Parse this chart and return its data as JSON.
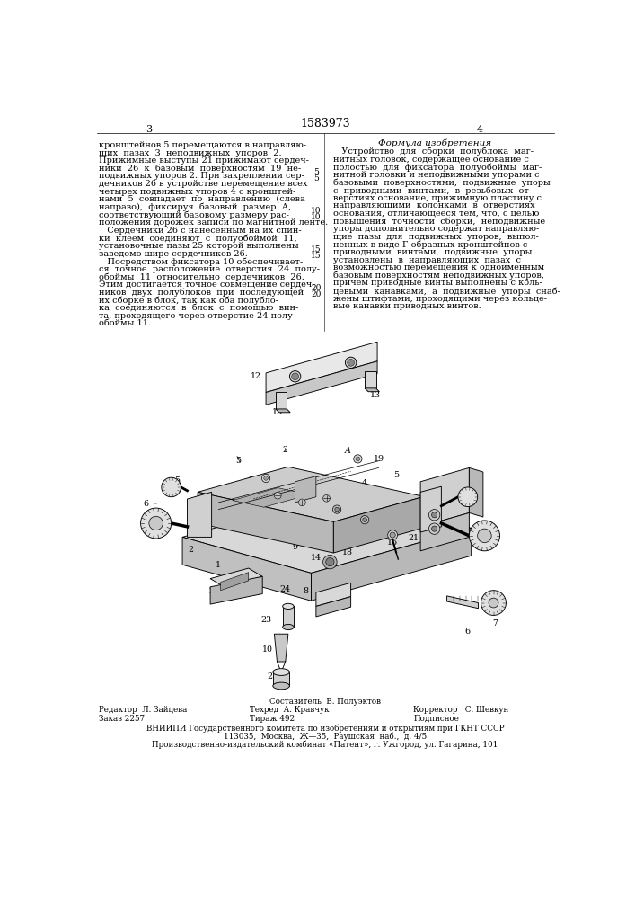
{
  "page_number_center": "1583973",
  "page_left": "3",
  "page_right": "4",
  "col_right_title": "Формула изобретения",
  "line_numbers_left": [
    "5",
    "10",
    "15",
    "20"
  ],
  "line_numbers_right": [
    "5",
    "10",
    "15",
    "20"
  ],
  "col_left_text": [
    "кронштейнов 5 перемещаются в направляю-",
    "щих  пазах  3  неподвижных  упоров  2.",
    "Прижимные выступы 21 прижимают сердеч-",
    "ники  26  к  базовым  поверхностям  19  не-",
    "подвижных упоров 2. При закреплении сер-",
    "дечников 26 в устройстве перемещение всех",
    "четырех подвижных упоров 4 с кронштей-",
    "нами  5  совпадает  по  направлению  (слева",
    "направо),  фиксируя  базовый  размер  А,",
    "соответствующий базовому размеру рас-",
    "положения дорожек записи по магнитной ленте.",
    "   Сердечники 26 с нанесенным на их спин-",
    "ки  клеем  соединяют  с  полуобоймой  11,",
    "установочные пазы 25 которой выполнены",
    "заведомо шире сердечников 26.",
    "   Посредством фиксатора 10 обеспечивает-",
    "ся  точное  расположение  отверстия  24  полу-",
    "обоймы  11  относительно  сердечников  26.",
    "Этим достигается точное совмещение сердеч-",
    "ников  двух  полублоков  при  последующей",
    "их сборке в блок, так как оба полубло-",
    "ка  соединяются  в  блок  с  помощью  вин-",
    "та, проходящего через отверстие 24 полу-",
    "обоймы 11."
  ],
  "col_right_text": [
    "   Устройство  для  сборки  полублока  маг-",
    "нитных головок, содержащее основание с",
    "полостью  для  фиксатора  полуобоймы  маг-",
    "нитной головки и неподвижными упорами с",
    "базовыми  поверхностями,  подвижные  упоры",
    "с  приводными  винтами,  в  резьбовых  от-",
    "верстиях основание, прижимную пластину с",
    "направляющими  колонками  в  отверстиях",
    "основания, отличающееся тем, что, с целью",
    "повышения  точности  сборки,  неподвижные",
    "упоры дополнительно содержат направляю-",
    "щие  пазы  для  подвижных  упоров,  выпол-",
    "ненных в виде Г-образных кронштейнов с",
    "приводными  винтами,  подвижные  упоры",
    "установлены  в  направляющих  пазах  с",
    "возможностью перемещения к одноименным",
    "базовым поверхностям неподвижных упоров,",
    "причем приводные винты выполнены с коль-",
    "цевыми  канавками,  а  подвижные  упоры  снаб-",
    "жены штифтами, проходящими через кольце-",
    "вые канавки приводных винтов."
  ],
  "footer_sestavitel": "Составитель  В. Полуэктов",
  "footer_redaktor": "Редактор  Л. Зайцева",
  "footer_tehred": "Техред  А. Кравчук",
  "footer_korrektor": "Корректор   С. Шевкун",
  "footer_zakaz": "Заказ 2257",
  "footer_tirazh": "Тираж 492",
  "footer_podpisnoe": "Подписное",
  "footer_org1": "ВНИИПИ Государственного комитета по изобретениям и открытиям при ГКНТ СССР",
  "footer_org2": "113035,  Москва,  Ж—35,  Раушская  наб.,  д. 4/5",
  "footer_org3": "Производственно-издательский комбинат «Патент», г. Ужгород, ул. Гагарина, 101",
  "bg_color": "#ffffff",
  "text_color": "#000000",
  "font_size_body": 7.0,
  "font_size_footer": 6.3,
  "font_size_header": 8.0
}
